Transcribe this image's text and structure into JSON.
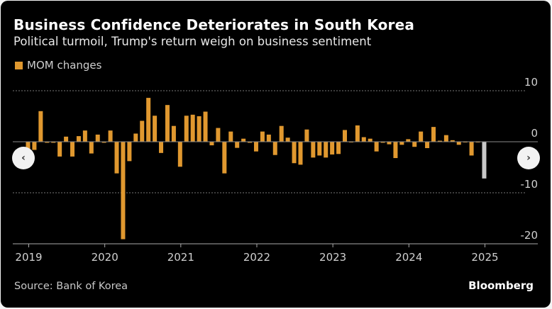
{
  "header": {
    "title": "Business Confidence Deteriorates in South Korea",
    "subtitle": "Political turmoil, Trump's return weigh on business sentiment"
  },
  "legend": {
    "label": "MOM changes",
    "color": "#e0982f"
  },
  "footer": {
    "source": "Source: Bank of Korea",
    "brand": "Bloomberg"
  },
  "navigation": {
    "prev_icon": "chevron-left-icon",
    "next_icon": "chevron-right-icon",
    "prev_glyph": "‹",
    "next_glyph": "›"
  },
  "chart_data": {
    "type": "bar",
    "title": "Business Confidence Deteriorates in South Korea",
    "subtitle": "Political turmoil, Trump's return weigh on business sentiment",
    "xlabel": "",
    "ylabel": "",
    "ylim": [
      -20,
      10
    ],
    "yticks": [
      10,
      0,
      -10,
      -20
    ],
    "ytick_labels": [
      "10",
      "0",
      "-10",
      "-20"
    ],
    "xticks": [
      "2019",
      "2020",
      "2021",
      "2022",
      "2023",
      "2024",
      "2025"
    ],
    "grid": "horizontal dotted",
    "legend_position": "top-left",
    "colors": {
      "default": "#e0982f",
      "highlight": "#c8c8c8"
    },
    "highlight_last": true,
    "series": [
      {
        "name": "MOM changes",
        "start": "2019-01",
        "frequency": "monthly",
        "values": [
          -1.5,
          -1.6,
          6.0,
          -0.2,
          -0.2,
          -2.9,
          1.0,
          -2.9,
          1.1,
          2.2,
          -2.3,
          1.4,
          -0.2,
          2.2,
          -6.2,
          -19.1,
          -3.8,
          1.6,
          4.1,
          8.6,
          5.1,
          -2.2,
          7.2,
          3.1,
          -4.9,
          5.1,
          5.3,
          5.0,
          5.9,
          -0.7,
          2.7,
          -6.2,
          2.0,
          -1.2,
          0.6,
          -0.2,
          -1.9,
          2.0,
          1.4,
          -2.6,
          3.1,
          0.8,
          -4.2,
          -4.5,
          2.4,
          -3.1,
          -2.7,
          -3.1,
          -2.5,
          -2.4,
          2.3,
          -0.1,
          3.2,
          0.9,
          0.6,
          -1.9,
          -0.2,
          -0.5,
          -3.2,
          -0.6,
          0.5,
          -1.0,
          2.0,
          -1.25,
          2.9,
          0.2,
          1.3,
          0.3,
          -0.6,
          -0.1,
          -2.7,
          -0.1,
          -7.2
        ]
      }
    ]
  }
}
